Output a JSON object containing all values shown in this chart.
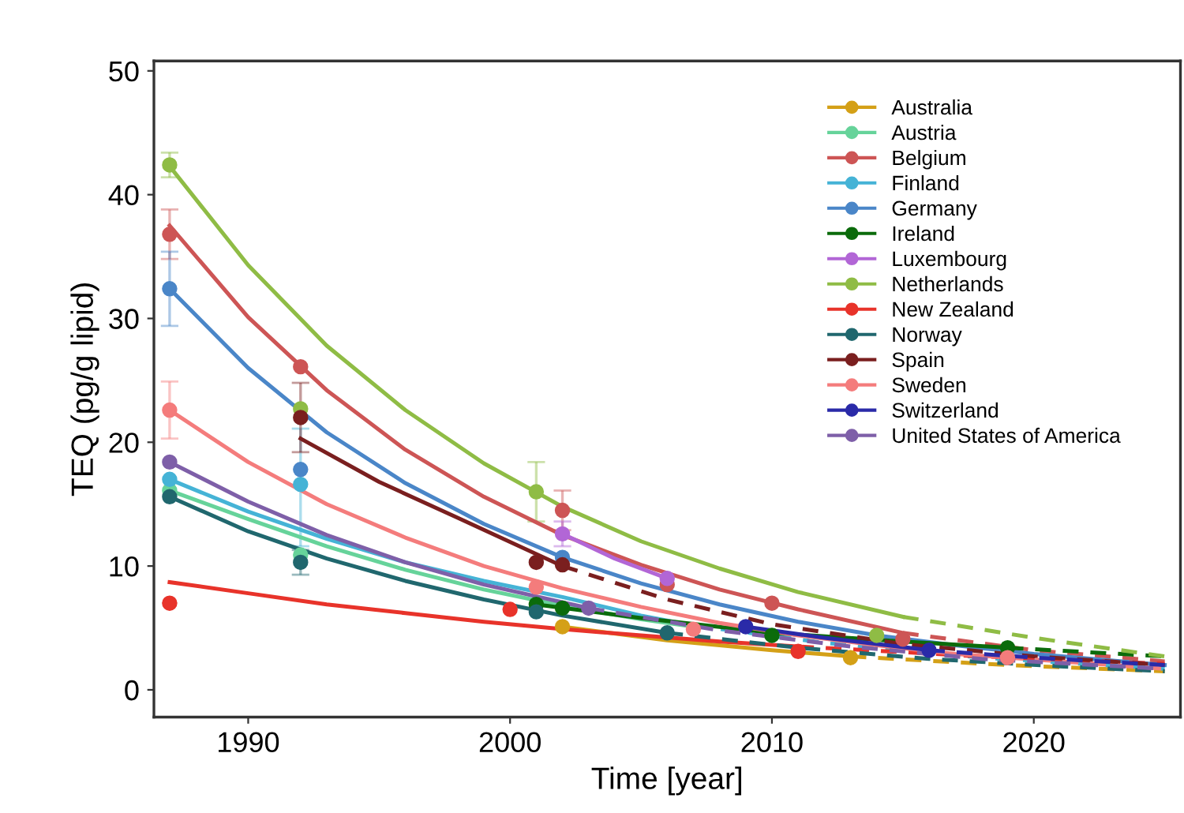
{
  "chart_data": {
    "type": "line",
    "xlabel": "Time [year]",
    "ylabel": "TEQ (pg/g lipid)",
    "xlim": [
      1986.4,
      2025.6
    ],
    "ylim": [
      -2.2,
      50.8
    ],
    "xticks": [
      1990,
      2000,
      2010,
      2020
    ],
    "yticks": [
      0,
      10,
      20,
      30,
      40,
      50
    ],
    "grid": false,
    "legend": "top right",
    "series": [
      {
        "name": "Australia",
        "color": "#d4a017",
        "type": "scatter",
        "marker": "circle",
        "x": [
          2002,
          2013
        ],
        "values": [
          5.1,
          2.6
        ]
      },
      {
        "name": "Austria",
        "color": "#66d39a",
        "type": "scatter",
        "marker": "circle",
        "x": [
          1987,
          1992
        ],
        "values": [
          16.1,
          10.9
        ]
      },
      {
        "name": "Belgium",
        "color": "#cd5555",
        "type": "scatter",
        "marker": "circle",
        "x": [
          1987,
          1992,
          2002,
          2006,
          2010,
          2015
        ],
        "values": [
          36.8,
          26.1,
          14.5,
          8.5,
          7.0,
          4.1
        ],
        "errors": [
          2.0,
          null,
          1.6,
          null,
          null,
          null
        ]
      },
      {
        "name": "Finland",
        "color": "#45b3d6",
        "type": "scatter",
        "marker": "circle",
        "x": [
          1987,
          1992
        ],
        "values": [
          17.0,
          16.6
        ],
        "errors": [
          null,
          [
            11.6,
            21.1
          ]
        ]
      },
      {
        "name": "Germany",
        "color": "#4a86c8",
        "type": "scatter",
        "marker": "circle",
        "x": [
          1987,
          1992,
          2002
        ],
        "values": [
          32.4,
          17.8,
          10.7
        ],
        "errors": [
          3.0,
          null,
          null
        ]
      },
      {
        "name": "Ireland",
        "color": "#0b6b0b",
        "type": "scatter",
        "marker": "circle",
        "x": [
          2001,
          2002,
          2010,
          2019
        ],
        "values": [
          6.9,
          6.6,
          4.4,
          3.4
        ]
      },
      {
        "name": "Luxembourg",
        "color": "#b266d6",
        "type": "scatter",
        "marker": "circle",
        "x": [
          2002,
          2006
        ],
        "values": [
          12.6,
          9.0
        ],
        "errors": [
          1.0,
          null
        ]
      },
      {
        "name": "Netherlands",
        "color": "#8fbc45",
        "type": "scatter",
        "marker": "circle",
        "x": [
          1987,
          1992,
          2001,
          2014
        ],
        "values": [
          42.4,
          22.7,
          16.0,
          4.4
        ],
        "errors": [
          1.0,
          null,
          2.4,
          null
        ]
      },
      {
        "name": "New Zealand",
        "color": "#e8332a",
        "type": "scatter",
        "marker": "circle",
        "x": [
          1987,
          2000,
          2011
        ],
        "values": [
          7.0,
          6.5,
          3.1
        ]
      },
      {
        "name": "Norway",
        "color": "#20676e",
        "type": "scatter",
        "marker": "circle",
        "x": [
          1987,
          1992,
          2001,
          2006
        ],
        "values": [
          15.6,
          10.3,
          6.3,
          4.6
        ],
        "errors": [
          null,
          1.0,
          null,
          null
        ]
      },
      {
        "name": "Spain",
        "color": "#7a1f1f",
        "type": "scatter",
        "marker": "circle",
        "x": [
          1992,
          2001,
          2002
        ],
        "values": [
          22.0,
          10.3,
          10.1
        ],
        "errors": [
          2.8,
          null,
          null
        ]
      },
      {
        "name": "Sweden",
        "color": "#f47c7c",
        "type": "scatter",
        "marker": "circle",
        "x": [
          1987,
          2001,
          2007,
          2019
        ],
        "values": [
          22.6,
          8.3,
          4.9,
          2.6
        ],
        "errors": [
          2.3,
          null,
          null,
          null
        ]
      },
      {
        "name": "Switzerland",
        "color": "#2a2aa8",
        "type": "scatter",
        "marker": "circle",
        "x": [
          2009,
          2016
        ],
        "values": [
          5.1,
          3.2
        ]
      },
      {
        "name": "United States of America",
        "color": "#7e5fa8",
        "type": "scatter",
        "marker": "circle",
        "x": [
          1987,
          2003
        ],
        "values": [
          18.4,
          6.6
        ]
      },
      {
        "color": "#d4a017",
        "x": [
          2002,
          2006,
          2010,
          2013
        ],
        "values": [
          5.1,
          4.0,
          3.2,
          2.7
        ]
      },
      {
        "color": "#d4a017",
        "line_style": "dashed",
        "x": [
          2013,
          2019,
          2025
        ],
        "values": [
          2.7,
          2.0,
          1.5
        ]
      },
      {
        "color": "#66d39a",
        "x": [
          1987,
          1990,
          1993,
          1996,
          1999,
          2002,
          2005,
          2007
        ],
        "values": [
          16.1,
          13.8,
          11.6,
          9.7,
          8.1,
          6.8,
          5.7,
          5.1
        ]
      },
      {
        "color": "#cd5555",
        "x": [
          1987,
          1990,
          1993,
          1996,
          1999,
          2002,
          2005,
          2008,
          2011,
          2015
        ],
        "values": [
          37.5,
          30.1,
          24.2,
          19.4,
          15.6,
          12.5,
          10.1,
          8.1,
          6.5,
          4.6
        ]
      },
      {
        "color": "#cd5555",
        "line_style": "dashed",
        "x": [
          2015,
          2020,
          2025
        ],
        "values": [
          4.6,
          3.2,
          2.3
        ]
      },
      {
        "color": "#45b3d6",
        "x": [
          1987,
          1990,
          1993,
          1996,
          1999,
          2002,
          2005,
          2007
        ],
        "values": [
          17.0,
          14.4,
          12.2,
          10.3,
          8.8,
          7.5,
          6.0,
          5.2
        ]
      },
      {
        "color": "#45b3d6",
        "line_style": "dashed",
        "x": [
          2007,
          2012,
          2018,
          2025
        ],
        "values": [
          5.2,
          3.8,
          2.6,
          1.7
        ]
      },
      {
        "color": "#4a86c8",
        "x": [
          1987,
          1990,
          1993,
          1996,
          1999,
          2002,
          2005,
          2008,
          2011,
          2014,
          2017,
          2020,
          2025
        ],
        "values": [
          32.4,
          26.0,
          20.8,
          16.7,
          13.4,
          10.7,
          8.6,
          6.9,
          5.5,
          4.4,
          3.6,
          2.9,
          2.0
        ]
      },
      {
        "color": "#0b6b0b",
        "x": [
          2001,
          2005,
          2010,
          2015,
          2019
        ],
        "values": [
          6.9,
          5.8,
          4.6,
          3.9,
          3.4
        ]
      },
      {
        "color": "#0b6b0b",
        "line_style": "dashed",
        "x": [
          2019,
          2025
        ],
        "values": [
          3.4,
          2.7
        ]
      },
      {
        "color": "#b266d6",
        "x": [
          2002,
          2004,
          2006
        ],
        "values": [
          12.6,
          10.6,
          9.0
        ]
      },
      {
        "color": "#8fbc45",
        "x": [
          1987,
          1990,
          1993,
          1996,
          1999,
          2002,
          2005,
          2008,
          2011,
          2015
        ],
        "values": [
          42.3,
          34.3,
          27.8,
          22.6,
          18.3,
          14.8,
          12.0,
          9.8,
          7.9,
          5.9
        ]
      },
      {
        "color": "#8fbc45",
        "line_style": "dashed",
        "x": [
          2015,
          2020,
          2025
        ],
        "values": [
          5.9,
          4.2,
          2.7
        ]
      },
      {
        "color": "#e8332a",
        "x": [
          1987,
          1990,
          1993,
          1996,
          1999,
          2002,
          2005,
          2008,
          2011
        ],
        "values": [
          8.7,
          7.8,
          6.9,
          6.2,
          5.5,
          4.9,
          4.4,
          3.9,
          3.5
        ]
      },
      {
        "color": "#e8332a",
        "line_style": "dashed",
        "x": [
          2011,
          2018,
          2025
        ],
        "values": [
          3.5,
          2.7,
          2.1
        ]
      },
      {
        "color": "#20676e",
        "x": [
          1987,
          1990,
          1993,
          1996,
          1999,
          2002,
          2006
        ],
        "values": [
          15.6,
          12.8,
          10.6,
          8.8,
          7.3,
          6.0,
          4.6
        ]
      },
      {
        "color": "#20676e",
        "line_style": "dashed",
        "x": [
          2006,
          2011,
          2016,
          2021,
          2025
        ],
        "values": [
          4.6,
          3.4,
          2.5,
          1.9,
          1.5
        ]
      },
      {
        "color": "#7a1f1f",
        "x": [
          1992,
          1995,
          1998,
          2002
        ],
        "values": [
          20.3,
          16.8,
          13.9,
          10.0
        ]
      },
      {
        "color": "#7a1f1f",
        "line_style": "dashed",
        "x": [
          2002,
          2006,
          2010,
          2015,
          2020,
          2025
        ],
        "values": [
          10.0,
          7.3,
          5.3,
          3.7,
          2.7,
          2.0
        ]
      },
      {
        "color": "#f47c7c",
        "x": [
          1987,
          1990,
          1993,
          1996,
          1999,
          2002,
          2005,
          2008,
          2011,
          2014,
          2017,
          2019
        ],
        "values": [
          22.6,
          18.4,
          15.0,
          12.3,
          10.0,
          8.2,
          6.7,
          5.4,
          4.4,
          3.6,
          2.9,
          2.6
        ]
      },
      {
        "color": "#f47c7c",
        "line_style": "dashed",
        "x": [
          2019,
          2025
        ],
        "values": [
          2.6,
          1.7
        ]
      },
      {
        "color": "#2a2aa8",
        "x": [
          2009,
          2012,
          2016
        ],
        "values": [
          5.1,
          4.2,
          3.2
        ]
      },
      {
        "color": "#2a2aa8",
        "line_style": "dashed",
        "x": [
          2016,
          2020,
          2025
        ],
        "values": [
          3.2,
          2.6,
          2.0
        ]
      },
      {
        "color": "#7e5fa8",
        "x": [
          1987,
          1990,
          1993,
          1996,
          1999,
          2003
        ],
        "values": [
          18.4,
          15.2,
          12.5,
          10.3,
          8.5,
          6.6
        ]
      },
      {
        "color": "#7e5fa8",
        "line_style": "dashed",
        "x": [
          2003,
          2008,
          2013,
          2018,
          2025
        ],
        "values": [
          6.6,
          4.8,
          3.5,
          2.5,
          1.7
        ]
      }
    ]
  }
}
